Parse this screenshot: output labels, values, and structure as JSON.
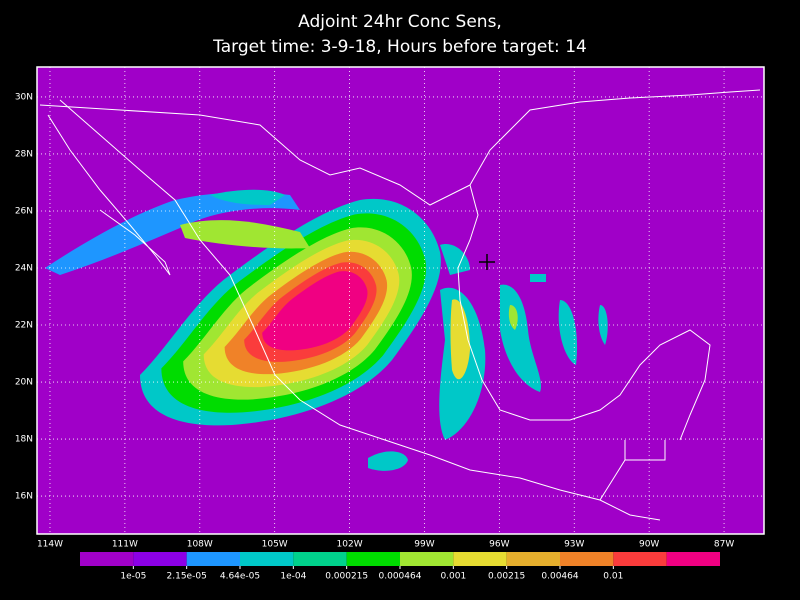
{
  "map": {
    "title": [
      "Adjoint 24hr Conc Sens,",
      "Target time: 3-9-18, Hours before target: 14"
    ],
    "lonlim": [
      -114.52,
      -85.4
    ],
    "latlim": [
      14.67,
      31.05
    ],
    "lonticks": [
      {
        "value": -114,
        "label": "114W"
      },
      {
        "value": -111,
        "label": "111W"
      },
      {
        "value": -108,
        "label": "108W"
      },
      {
        "value": -105,
        "label": "105W"
      },
      {
        "value": -102,
        "label": "102W"
      },
      {
        "value": -99,
        "label": "99W"
      },
      {
        "value": -96,
        "label": "96W"
      },
      {
        "value": -93,
        "label": "93W"
      },
      {
        "value": -90,
        "label": "90W"
      },
      {
        "value": -87,
        "label": "87W"
      }
    ],
    "latticks": [
      {
        "value": 16,
        "label": "16N"
      },
      {
        "value": 18,
        "label": "18N"
      },
      {
        "value": 20,
        "label": "20N"
      },
      {
        "value": 22,
        "label": "22N"
      },
      {
        "value": 24,
        "label": "24N"
      },
      {
        "value": 26,
        "label": "26N"
      },
      {
        "value": 28,
        "label": "28N"
      },
      {
        "value": 30,
        "label": "30N"
      }
    ],
    "grid": true,
    "colors": [
      "#a000c8",
      "#8c00e6",
      "#1e96ff",
      "#00c8c8",
      "#00d28c",
      "#00dc00",
      "#a0e632",
      "#e6dc32",
      "#e6af2d",
      "#f08228",
      "#fa3c3c",
      "#f00082"
    ],
    "levels": [
      {
        "value": 1e-05,
        "label": "1e-05"
      },
      {
        "value": 2.15e-05,
        "label": "2.15e-05"
      },
      {
        "value": 4.64e-05,
        "label": "4.64e-05"
      },
      {
        "value": 0.0001,
        "label": "1e-04"
      },
      0.000215,
      0.000464,
      0.001,
      0.00215,
      0.00464,
      0.01
    ]
  }
}
